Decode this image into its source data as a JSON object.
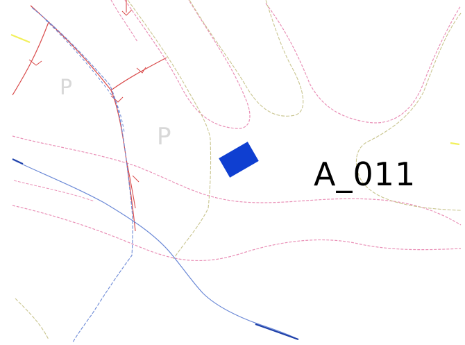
{
  "map": {
    "feature_label": "A_011",
    "parking_labels": [
      "P",
      "P"
    ],
    "colors": {
      "background": "#ffffff",
      "pink": "#e98fb6",
      "olive": "#c9c58f",
      "red": "#d94a4a",
      "blue": "#6a88d6",
      "dark_blue": "#1d3fa8",
      "yellow": "#f2f05a",
      "marker": "#0f3fd1",
      "label": "#000000",
      "parking": "#d8d8d8"
    },
    "marker": {
      "type": "rectangle",
      "shape": "filled-rotated-rectangle"
    }
  }
}
